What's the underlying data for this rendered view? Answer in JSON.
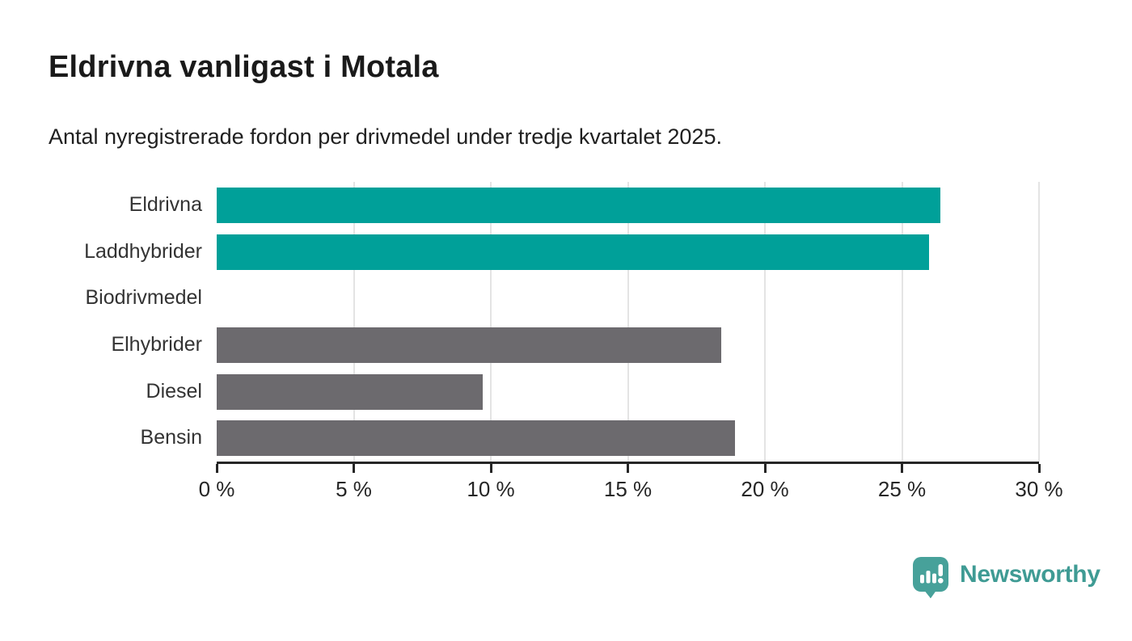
{
  "chart_data": {
    "type": "bar",
    "orientation": "horizontal",
    "title": "Eldrivna vanligast i Motala",
    "subtitle": "Antal nyregistrerade fordon per drivmedel under tredje kvartalet 2025.",
    "categories": [
      "Eldrivna",
      "Laddhybrider",
      "Biodrivmedel",
      "Elhybrider",
      "Diesel",
      "Bensin"
    ],
    "values": [
      26.4,
      26.0,
      0,
      18.4,
      9.7,
      18.9
    ],
    "unit": "%",
    "xlim": [
      0,
      30
    ],
    "ticks": [
      0,
      5,
      10,
      15,
      20,
      25,
      30
    ],
    "tick_labels": [
      "0 %",
      "5 %",
      "10 %",
      "15 %",
      "20 %",
      "25 %",
      "30 %"
    ],
    "grid": true,
    "legend": false,
    "bar_colors": [
      "#00A099",
      "#00A099",
      "#6C6A6E",
      "#6C6A6E",
      "#6C6A6E",
      "#6C6A6E"
    ],
    "colors": {
      "highlight": "#00A099",
      "default": "#6C6A6E",
      "gridline": "#E4E4E4",
      "axis": "#262626"
    }
  },
  "branding": {
    "name": "Newsworthy",
    "text_color": "#3F9B94",
    "mark_color": "#47A19A"
  }
}
